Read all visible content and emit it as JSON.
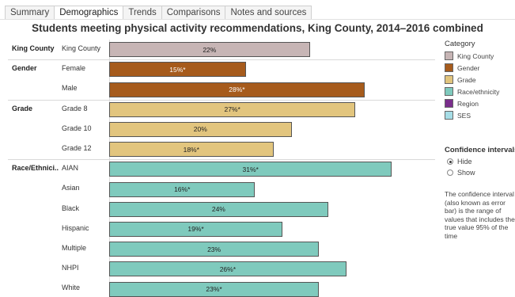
{
  "tabs": [
    "Summary",
    "Demographics",
    "Trends",
    "Comparisons",
    "Notes and sources"
  ],
  "active_tab": "Demographics",
  "title": "Students meeting physical activity recommendations, King County, 2014–2016 combined",
  "chart_data": {
    "type": "bar",
    "orientation": "horizontal",
    "title": "Students meeting physical activity recommendations, King County, 2014–2016 combined",
    "groups": [
      {
        "name": "King County",
        "rows": [
          {
            "label": "King County",
            "value": 22,
            "text": "22%",
            "category": "King County"
          }
        ]
      },
      {
        "name": "Gender",
        "rows": [
          {
            "label": "Female",
            "value": 15,
            "text": "15%*",
            "category": "Gender"
          },
          {
            "label": "Male",
            "value": 28,
            "text": "28%*",
            "category": "Gender"
          }
        ]
      },
      {
        "name": "Grade",
        "rows": [
          {
            "label": "Grade 8",
            "value": 27,
            "text": "27%*",
            "category": "Grade"
          },
          {
            "label": "Grade 10",
            "value": 20,
            "text": "20%",
            "category": "Grade"
          },
          {
            "label": "Grade 12",
            "value": 18,
            "text": "18%*",
            "category": "Grade"
          }
        ]
      },
      {
        "name": "Race/Ethnici..",
        "rows": [
          {
            "label": "AIAN",
            "value": 31,
            "text": "31%*",
            "category": "Race/ethnicity"
          },
          {
            "label": "Asian",
            "value": 16,
            "text": "16%*",
            "category": "Race/ethnicity"
          },
          {
            "label": "Black",
            "value": 24,
            "text": "24%",
            "category": "Race/ethnicity"
          },
          {
            "label": "Hispanic",
            "value": 19,
            "text": "19%*",
            "category": "Race/ethnicity"
          },
          {
            "label": "Multiple",
            "value": 23,
            "text": "23%",
            "category": "Race/ethnicity"
          },
          {
            "label": "NHPI",
            "value": 26,
            "text": "26%*",
            "category": "Race/ethnicity"
          },
          {
            "label": "White",
            "value": 23,
            "text": "23%*",
            "category": "Race/ethnicity"
          }
        ]
      }
    ],
    "xlim": [
      0,
      34
    ]
  },
  "legend": {
    "title": "Category",
    "items": [
      {
        "label": "King County",
        "color": "#c7b5b5"
      },
      {
        "label": "Gender",
        "color": "#a65b1c"
      },
      {
        "label": "Grade",
        "color": "#e2c57e"
      },
      {
        "label": "Race/ethnicity",
        "color": "#7fcabd"
      },
      {
        "label": "Region",
        "color": "#7a2e8c"
      },
      {
        "label": "SES",
        "color": "#a6dde6"
      }
    ]
  },
  "confidence": {
    "title": "Confidence intervals",
    "options": [
      "Hide",
      "Show"
    ],
    "selected": "Hide",
    "note": "The confidence interval (also known as error bar) is the range of values that includes the true value 95% of the time"
  }
}
